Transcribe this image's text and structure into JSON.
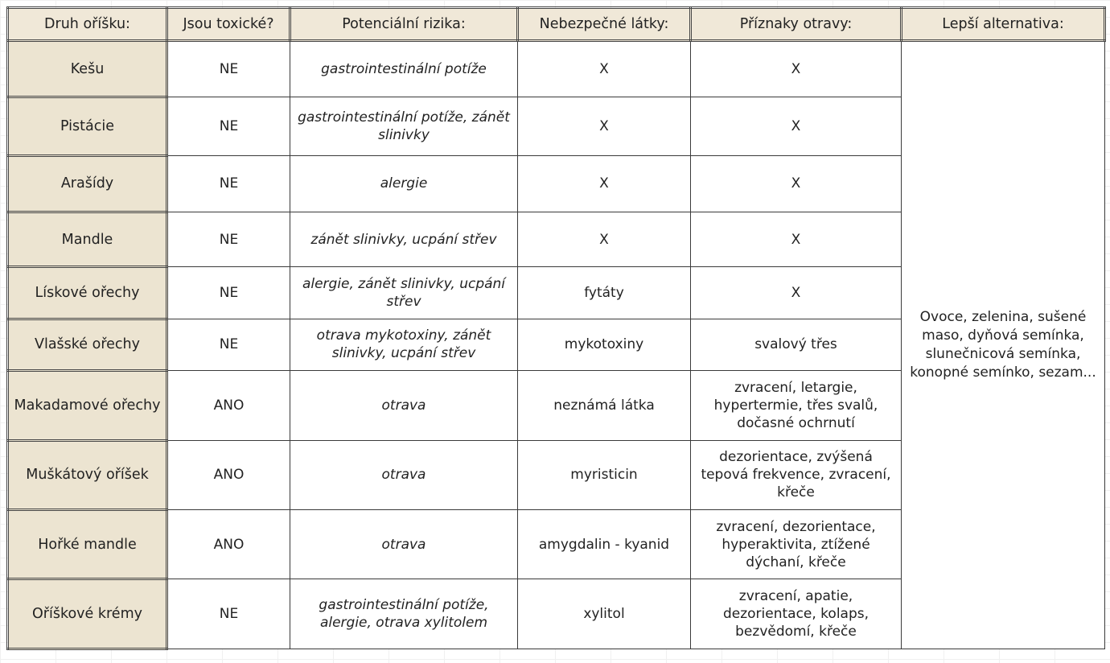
{
  "headers": [
    "Druh oříšku:",
    "Jsou toxické?",
    "Potenciální rizika:",
    "Nebezpečné látky:",
    "Příznaky otravy:",
    "Lepší alternativa:"
  ],
  "rows": [
    {
      "name": "Kešu",
      "toxic": "NE",
      "risks": "gastrointestinální potíže",
      "substances": "X",
      "symptoms": "X"
    },
    {
      "name": "Pistácie",
      "toxic": "NE",
      "risks": "gastrointestinální potíže, zánět slinivky",
      "substances": "X",
      "symptoms": "X"
    },
    {
      "name": "Arašídy",
      "toxic": "NE",
      "risks": "alergie",
      "substances": "X",
      "symptoms": "X"
    },
    {
      "name": "Mandle",
      "toxic": "NE",
      "risks": "zánět slinivky, ucpání střev",
      "substances": "X",
      "symptoms": "X"
    },
    {
      "name": "Lískové ořechy",
      "toxic": "NE",
      "risks": "alergie, zánět slinivky, ucpání střev",
      "substances": "fytáty",
      "symptoms": "X"
    },
    {
      "name": "Vlašské ořechy",
      "toxic": "NE",
      "risks": "otrava mykotoxiny, zánět slinivky, ucpání střev",
      "substances": "mykotoxiny",
      "symptoms": "svalový třes"
    },
    {
      "name": "Makadamové ořechy",
      "toxic": "ANO",
      "risks": "otrava",
      "substances": "neznámá látka",
      "symptoms": "zvracení, letargie, hypertermie, třes svalů, dočasné ochrnutí"
    },
    {
      "name": "Muškátový oříšek",
      "toxic": "ANO",
      "risks": "otrava",
      "substances": "myristicin",
      "symptoms": "dezorientace, zvýšená tepová frekvence, zvracení, křeče"
    },
    {
      "name": "Hořké mandle",
      "toxic": "ANO",
      "risks": "otrava",
      "substances": "amygdalin - kyanid",
      "symptoms": "zvracení, dezorientace, hyperaktivita, ztížené dýchaní, křeče"
    },
    {
      "name": "Oříškové krémy",
      "toxic": "NE",
      "risks": "gastrointestinální potíže, alergie, otrava xylitolem",
      "substances": "xylitol",
      "symptoms": "zvracení, apatie, dezorientace, kolaps, bezvědomí, křeče"
    }
  ],
  "alternative": "Ovoce, zelenina, sušené maso, dyňová semínka, slunečnicová semínka, konopné semínko, sezam..."
}
